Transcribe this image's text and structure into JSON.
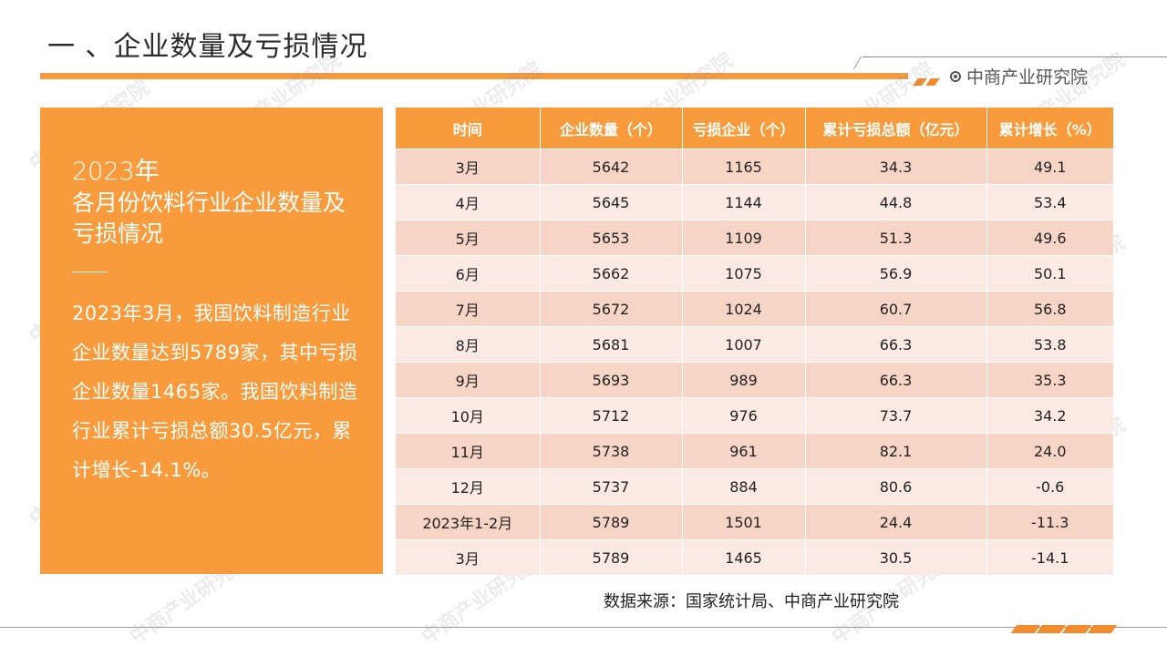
{
  "header": {
    "title": "一 、企业数量及亏损情况",
    "brand": "中商产业研究院"
  },
  "panel": {
    "year": "2023年",
    "subtitle_line1": "各月份饮料行业企业数量及",
    "subtitle_line2": "亏损情况",
    "body": "2023年3月，我国饮料制造行业企业数量达到5789家，其中亏损企业数量1465家。我国饮料制造行业累计亏损总额30.5亿元，累计增长-14.1%。"
  },
  "table": {
    "headers": [
      "时间",
      "企业数量（个）",
      "亏损企业（个）",
      "累计亏损总额（亿元）",
      "累计增长（%）"
    ],
    "rows": [
      [
        "3月",
        "5642",
        "1165",
        "34.3",
        "49.1"
      ],
      [
        "4月",
        "5645",
        "1144",
        "44.8",
        "53.4"
      ],
      [
        "5月",
        "5653",
        "1109",
        "51.3",
        "49.6"
      ],
      [
        "6月",
        "5662",
        "1075",
        "56.9",
        "50.1"
      ],
      [
        "7月",
        "5672",
        "1024",
        "60.7",
        "56.8"
      ],
      [
        "8月",
        "5681",
        "1007",
        "66.3",
        "53.8"
      ],
      [
        "9月",
        "5693",
        "989",
        "66.3",
        "35.3"
      ],
      [
        "10月",
        "5712",
        "976",
        "73.7",
        "34.2"
      ],
      [
        "11月",
        "5738",
        "961",
        "82.1",
        "24.0"
      ],
      [
        "12月",
        "5737",
        "884",
        "80.6",
        "-0.6"
      ],
      [
        "2023年1-2月",
        "5789",
        "1501",
        "24.4",
        "-11.3"
      ],
      [
        "3月",
        "5789",
        "1465",
        "30.5",
        "-14.1"
      ]
    ]
  },
  "footer": {
    "source": "数据来源：国家统计局、中商产业研究院"
  },
  "watermark": "中商产业研究院",
  "colors": {
    "accent": "#f79b3c",
    "row_dark": "#f6d5c6",
    "row_light": "#fbeae3"
  }
}
